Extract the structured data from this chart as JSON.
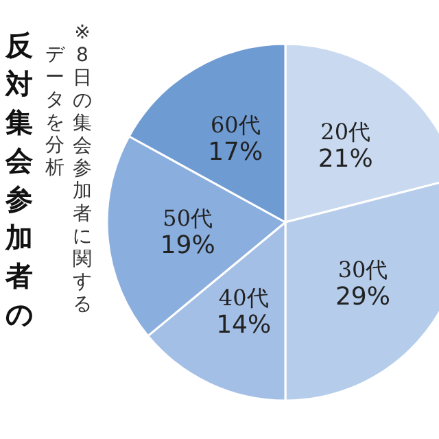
{
  "chart_data": {
    "type": "pie",
    "title": "反対集会参加者の",
    "annotations": [
      "※8日の集会参加者に関する",
      "データを分析"
    ],
    "categories": [
      "20代",
      "30代",
      "40代",
      "50代",
      "60代"
    ],
    "values": [
      21,
      29,
      14,
      19,
      17
    ],
    "colors": [
      "#c9daf0",
      "#b5cceb",
      "#a3bfe5",
      "#8aaedd",
      "#6f9bd3"
    ],
    "value_labels": [
      "21%",
      "29%",
      "14%",
      "19%",
      "17%"
    ]
  }
}
